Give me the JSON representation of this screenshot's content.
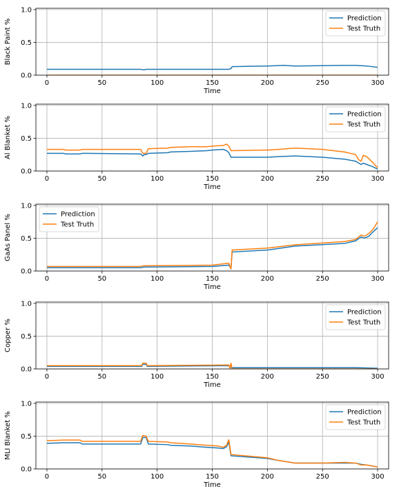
{
  "chart_data": [
    {
      "type": "line",
      "xlabel": "Time",
      "ylabel": "Black Paint %",
      "xlim": [
        -10,
        310
      ],
      "ylim": [
        0,
        1.02
      ],
      "xticks": [
        0,
        50,
        100,
        150,
        200,
        250,
        300
      ],
      "yticks": [
        0.0,
        0.5,
        1.0
      ],
      "grid": true,
      "legend": "top-right",
      "series": [
        {
          "name": "Prediction",
          "color": "#1f77b4",
          "points": [
            [
              0,
              0.09
            ],
            [
              85,
              0.09
            ],
            [
              88,
              0.08
            ],
            [
              90,
              0.09
            ],
            [
              165,
              0.09
            ],
            [
              167,
              0.1
            ],
            [
              168,
              0.13
            ],
            [
              200,
              0.14
            ],
            [
              215,
              0.15
            ],
            [
              225,
              0.14
            ],
            [
              270,
              0.15
            ],
            [
              280,
              0.15
            ],
            [
              290,
              0.14
            ],
            [
              300,
              0.12
            ]
          ]
        },
        {
          "name": "Test Truth",
          "color": "#ff7f0e",
          "points": [
            [
              0,
              0.0
            ],
            [
              300,
              0.0
            ]
          ]
        }
      ]
    },
    {
      "type": "line",
      "xlabel": "Time",
      "ylabel": "Al Blanket %",
      "xlim": [
        -10,
        310
      ],
      "ylim": [
        0,
        1.02
      ],
      "xticks": [
        0,
        50,
        100,
        150,
        200,
        250,
        300
      ],
      "yticks": [
        0.0,
        0.5,
        1.0
      ],
      "grid": true,
      "legend": "top-right",
      "series": [
        {
          "name": "Prediction",
          "color": "#1f77b4",
          "points": [
            [
              0,
              0.27
            ],
            [
              15,
              0.27
            ],
            [
              17,
              0.26
            ],
            [
              30,
              0.26
            ],
            [
              32,
              0.27
            ],
            [
              85,
              0.26
            ],
            [
              87,
              0.23
            ],
            [
              88,
              0.25
            ],
            [
              90,
              0.25
            ],
            [
              92,
              0.27
            ],
            [
              110,
              0.28
            ],
            [
              112,
              0.29
            ],
            [
              130,
              0.3
            ],
            [
              145,
              0.31
            ],
            [
              150,
              0.32
            ],
            [
              160,
              0.33
            ],
            [
              163,
              0.31
            ],
            [
              165,
              0.28
            ],
            [
              167,
              0.21
            ],
            [
              200,
              0.21
            ],
            [
              210,
              0.22
            ],
            [
              225,
              0.23
            ],
            [
              250,
              0.21
            ],
            [
              270,
              0.18
            ],
            [
              280,
              0.15
            ],
            [
              283,
              0.12
            ],
            [
              285,
              0.1
            ],
            [
              287,
              0.12
            ],
            [
              290,
              0.1
            ],
            [
              295,
              0.07
            ],
            [
              300,
              0.03
            ]
          ]
        },
        {
          "name": "Test Truth",
          "color": "#ff7f0e",
          "points": [
            [
              0,
              0.33
            ],
            [
              15,
              0.33
            ],
            [
              17,
              0.32
            ],
            [
              30,
              0.32
            ],
            [
              32,
              0.33
            ],
            [
              85,
              0.33
            ],
            [
              87,
              0.27
            ],
            [
              88,
              0.27
            ],
            [
              90,
              0.27
            ],
            [
              92,
              0.34
            ],
            [
              110,
              0.35
            ],
            [
              112,
              0.36
            ],
            [
              130,
              0.37
            ],
            [
              145,
              0.37
            ],
            [
              150,
              0.38
            ],
            [
              160,
              0.39
            ],
            [
              163,
              0.41
            ],
            [
              165,
              0.38
            ],
            [
              167,
              0.31
            ],
            [
              200,
              0.32
            ],
            [
              210,
              0.33
            ],
            [
              225,
              0.35
            ],
            [
              250,
              0.33
            ],
            [
              270,
              0.29
            ],
            [
              280,
              0.25
            ],
            [
              283,
              0.17
            ],
            [
              285,
              0.15
            ],
            [
              287,
              0.24
            ],
            [
              290,
              0.22
            ],
            [
              295,
              0.14
            ],
            [
              300,
              0.05
            ]
          ]
        }
      ]
    },
    {
      "type": "line",
      "xlabel": "Time",
      "ylabel": "GaAs Panel %",
      "xlim": [
        -10,
        310
      ],
      "ylim": [
        0,
        1.02
      ],
      "xticks": [
        0,
        50,
        100,
        150,
        200,
        250,
        300
      ],
      "yticks": [
        0.0,
        0.5,
        1.0
      ],
      "grid": true,
      "legend": "top-left",
      "series": [
        {
          "name": "Prediction",
          "color": "#1f77b4",
          "points": [
            [
              0,
              0.05
            ],
            [
              85,
              0.05
            ],
            [
              88,
              0.06
            ],
            [
              150,
              0.07
            ],
            [
              165,
              0.09
            ],
            [
              167,
              0.04
            ],
            [
              168,
              0.29
            ],
            [
              200,
              0.32
            ],
            [
              225,
              0.38
            ],
            [
              270,
              0.42
            ],
            [
              280,
              0.46
            ],
            [
              285,
              0.52
            ],
            [
              288,
              0.5
            ],
            [
              292,
              0.53
            ],
            [
              296,
              0.6
            ],
            [
              300,
              0.66
            ]
          ]
        },
        {
          "name": "Test Truth",
          "color": "#ff7f0e",
          "points": [
            [
              0,
              0.07
            ],
            [
              85,
              0.07
            ],
            [
              88,
              0.08
            ],
            [
              150,
              0.09
            ],
            [
              165,
              0.12
            ],
            [
              167,
              0.03
            ],
            [
              168,
              0.32
            ],
            [
              200,
              0.35
            ],
            [
              225,
              0.4
            ],
            [
              270,
              0.45
            ],
            [
              280,
              0.48
            ],
            [
              285,
              0.55
            ],
            [
              288,
              0.53
            ],
            [
              292,
              0.57
            ],
            [
              296,
              0.64
            ],
            [
              300,
              0.75
            ]
          ]
        }
      ]
    },
    {
      "type": "line",
      "xlabel": "Time",
      "ylabel": "Copper %",
      "xlim": [
        -10,
        310
      ],
      "ylim": [
        0,
        1.02
      ],
      "xticks": [
        0,
        50,
        100,
        150,
        200,
        250,
        300
      ],
      "yticks": [
        0.0,
        0.5,
        1.0
      ],
      "grid": true,
      "legend": "top-right",
      "series": [
        {
          "name": "Prediction",
          "color": "#1f77b4",
          "points": [
            [
              0,
              0.04
            ],
            [
              86,
              0.04
            ],
            [
              87,
              0.07
            ],
            [
              90,
              0.07
            ],
            [
              91,
              0.04
            ],
            [
              165,
              0.05
            ],
            [
              166,
              0.03
            ],
            [
              168,
              0.02
            ],
            [
              200,
              0.02
            ],
            [
              280,
              0.02
            ],
            [
              300,
              0.01
            ]
          ]
        },
        {
          "name": "Test Truth",
          "color": "#ff7f0e",
          "points": [
            [
              0,
              0.05
            ],
            [
              86,
              0.05
            ],
            [
              87,
              0.09
            ],
            [
              90,
              0.09
            ],
            [
              91,
              0.05
            ],
            [
              165,
              0.06
            ],
            [
              166,
              0.01
            ],
            [
              167,
              0.09
            ],
            [
              168,
              0.0
            ],
            [
              300,
              0.0
            ]
          ]
        }
      ]
    },
    {
      "type": "line",
      "xlabel": "Time",
      "ylabel": "MLI Blanket %",
      "xlim": [
        -10,
        310
      ],
      "ylim": [
        0,
        1.02
      ],
      "xticks": [
        0,
        50,
        100,
        150,
        200,
        250,
        300
      ],
      "yticks": [
        0.0,
        0.5,
        1.0
      ],
      "grid": true,
      "legend": "top-right",
      "series": [
        {
          "name": "Prediction",
          "color": "#1f77b4",
          "points": [
            [
              0,
              0.39
            ],
            [
              15,
              0.4
            ],
            [
              30,
              0.4
            ],
            [
              32,
              0.38
            ],
            [
              85,
              0.38
            ],
            [
              87,
              0.48
            ],
            [
              90,
              0.48
            ],
            [
              92,
              0.38
            ],
            [
              110,
              0.37
            ],
            [
              112,
              0.36
            ],
            [
              130,
              0.35
            ],
            [
              145,
              0.33
            ],
            [
              155,
              0.32
            ],
            [
              160,
              0.31
            ],
            [
              163,
              0.34
            ],
            [
              165,
              0.41
            ],
            [
              167,
              0.2
            ],
            [
              200,
              0.16
            ],
            [
              210,
              0.13
            ],
            [
              225,
              0.09
            ],
            [
              250,
              0.09
            ],
            [
              270,
              0.09
            ],
            [
              280,
              0.09
            ],
            [
              285,
              0.07
            ],
            [
              290,
              0.06
            ],
            [
              300,
              0.03
            ]
          ]
        },
        {
          "name": "Test Truth",
          "color": "#ff7f0e",
          "points": [
            [
              0,
              0.43
            ],
            [
              15,
              0.44
            ],
            [
              30,
              0.44
            ],
            [
              32,
              0.42
            ],
            [
              85,
              0.42
            ],
            [
              87,
              0.51
            ],
            [
              90,
              0.5
            ],
            [
              92,
              0.42
            ],
            [
              110,
              0.41
            ],
            [
              112,
              0.4
            ],
            [
              130,
              0.38
            ],
            [
              145,
              0.36
            ],
            [
              155,
              0.35
            ],
            [
              160,
              0.33
            ],
            [
              163,
              0.36
            ],
            [
              165,
              0.45
            ],
            [
              167,
              0.22
            ],
            [
              200,
              0.17
            ],
            [
              210,
              0.13
            ],
            [
              225,
              0.09
            ],
            [
              250,
              0.09
            ],
            [
              270,
              0.1
            ],
            [
              280,
              0.09
            ],
            [
              285,
              0.06
            ],
            [
              290,
              0.06
            ],
            [
              300,
              0.03
            ]
          ]
        }
      ]
    }
  ]
}
